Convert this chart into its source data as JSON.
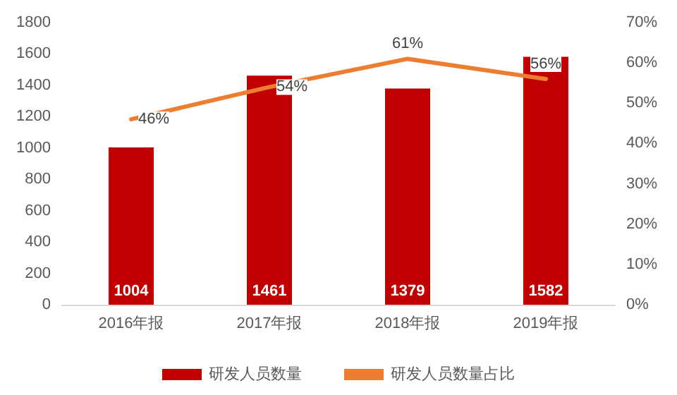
{
  "chart_data": {
    "type": "bar",
    "categories": [
      "2016年报",
      "2017年报",
      "2018年报",
      "2019年报"
    ],
    "series": [
      {
        "name": "研发人员数量",
        "color": "#c00000",
        "values": [
          1004,
          1461,
          1379,
          1582
        ],
        "value_labels": [
          "1004",
          "1461",
          "1379",
          "1582"
        ]
      },
      {
        "name": "研发人员数量占比",
        "type": "line",
        "axis": "y2",
        "color": "#ed7d31",
        "values": [
          46,
          54,
          61,
          56
        ],
        "value_labels": [
          "46%",
          "54%",
          "61%",
          "56%"
        ]
      }
    ],
    "ylim": [
      0,
      1800
    ],
    "yticks": [
      0,
      200,
      400,
      600,
      800,
      1000,
      1200,
      1400,
      1600,
      1800
    ],
    "y2lim": [
      0,
      70
    ],
    "y2ticks": [
      {
        "value": 0,
        "label": "0%"
      },
      {
        "value": 10,
        "label": "10%"
      },
      {
        "value": 20,
        "label": "20%"
      },
      {
        "value": 30,
        "label": "30%"
      },
      {
        "value": 40,
        "label": "40%"
      },
      {
        "value": 50,
        "label": "50%"
      },
      {
        "value": 60,
        "label": "60%"
      },
      {
        "value": 70,
        "label": "70%"
      }
    ],
    "grid": false,
    "legend": "bottom",
    "marker": "none",
    "line_style": "solid"
  }
}
